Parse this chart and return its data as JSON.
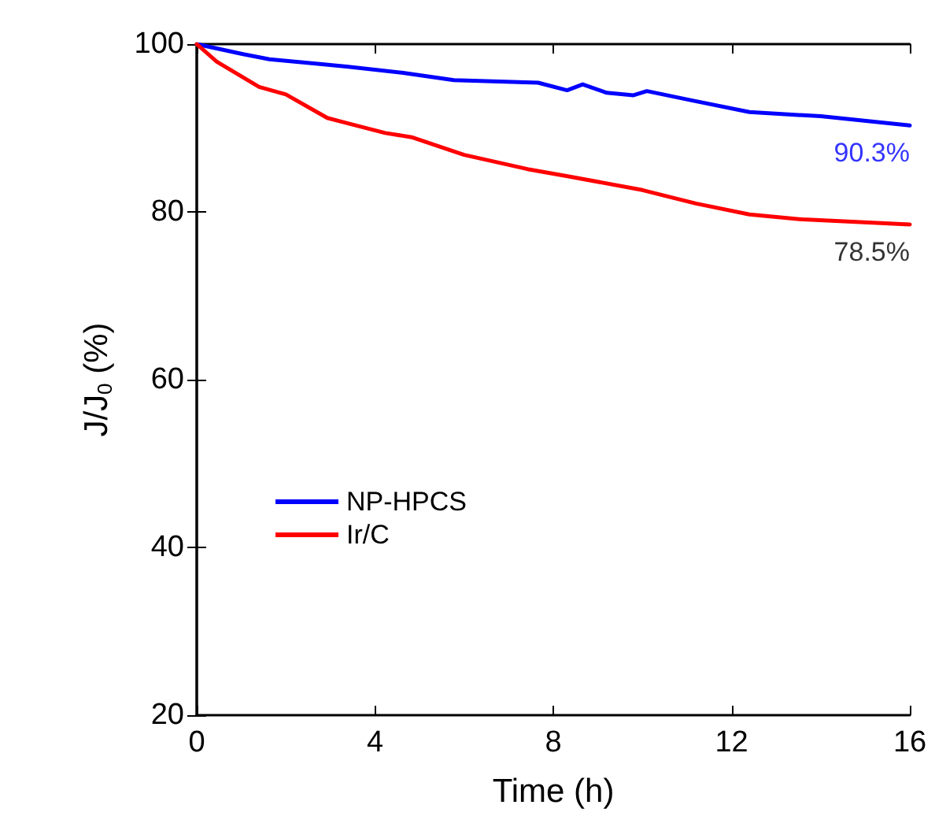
{
  "chart_data": {
    "type": "line",
    "xlabel": "Time (h)",
    "ylabel": "J/J$_{0}$ (%)",
    "xlim": [
      0,
      16
    ],
    "xticks": [
      0,
      4,
      8,
      12,
      16
    ],
    "ylim": [
      20,
      100
    ],
    "yticks": [
      20,
      40,
      60,
      80,
      100
    ],
    "legend": "bottom left",
    "grid": false,
    "marker": "none",
    "line_style": "solid",
    "series": [
      {
        "name": "NP-HPCS",
        "color": "#0000ff",
        "x": [
          0,
          1.04,
          1.63,
          2.81,
          3.4,
          4.6,
          5.77,
          7.66,
          8.31,
          8.66,
          9.2,
          9.8,
          10.1,
          11.1,
          12.4,
          14.0,
          16
        ],
        "values": [
          100,
          98.8,
          98.2,
          97.6,
          97.3,
          96.6,
          95.7,
          95.4,
          94.5,
          95.2,
          94.2,
          93.9,
          94.4,
          93.3,
          91.9,
          91.4,
          90.3
        ]
      },
      {
        "name": "Ir/C",
        "color": "#ff0000",
        "x": [
          0,
          0.45,
          1.4,
          2.0,
          2.93,
          3.29,
          4.23,
          4.82,
          6.0,
          7.42,
          8.37,
          10.0,
          11.2,
          12.4,
          13.6,
          16
        ],
        "values": [
          100,
          97.9,
          94.9,
          94.0,
          91.2,
          90.7,
          89.4,
          88.9,
          86.8,
          85.1,
          84.2,
          82.6,
          81.0,
          79.7,
          79.1,
          78.5
        ]
      }
    ],
    "annotations": [
      {
        "text": "90.3%",
        "x": 16,
        "y": 90.3
      },
      {
        "text": "78.5%",
        "x": 16,
        "y": 78.5
      }
    ]
  }
}
